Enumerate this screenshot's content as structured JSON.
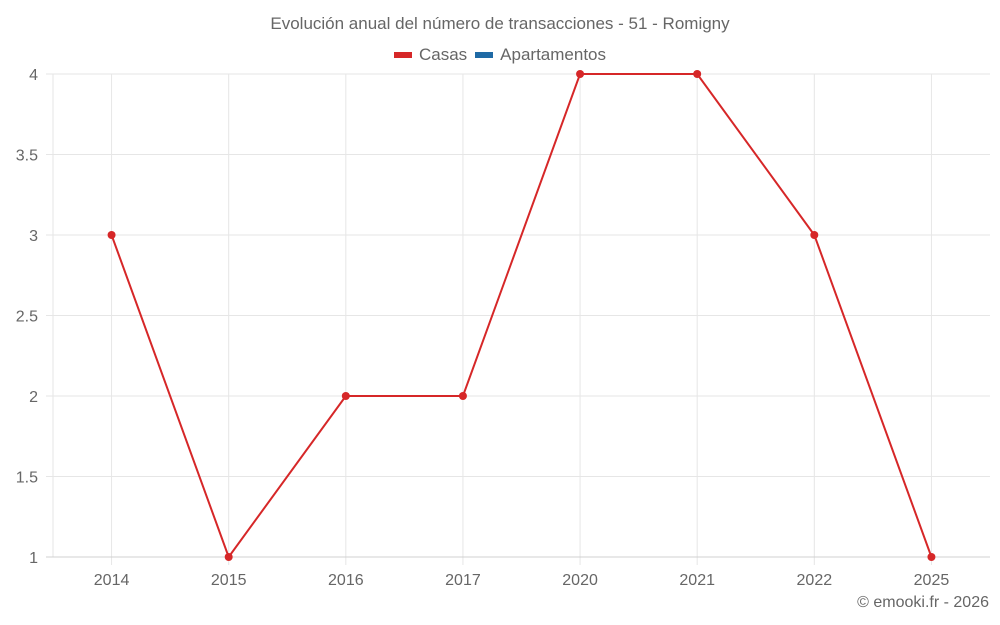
{
  "chart_data": {
    "type": "line",
    "title": "Evolución anual del número de transacciones - 51 - Romigny",
    "categories": [
      "2014",
      "2015",
      "2016",
      "2017",
      "2020",
      "2021",
      "2022",
      "2025"
    ],
    "series": [
      {
        "name": "Casas",
        "color": "#d62728",
        "values": [
          3,
          1,
          2,
          2,
          4,
          4,
          3,
          1
        ]
      },
      {
        "name": "Apartamentos",
        "color": "#1f6aa5",
        "values": []
      }
    ],
    "xlabel": "",
    "ylabel": "",
    "ylim": [
      1,
      4
    ],
    "yticks": [
      "1",
      "1.5",
      "2",
      "2.5",
      "3",
      "3.5",
      "4"
    ],
    "grid": true,
    "legend_position": "top"
  },
  "legend": [
    {
      "label": "Casas",
      "color": "#d62728"
    },
    {
      "label": "Apartamentos",
      "color": "#1f6aa5"
    }
  ],
  "credit": "© emooki.fr - 2026"
}
